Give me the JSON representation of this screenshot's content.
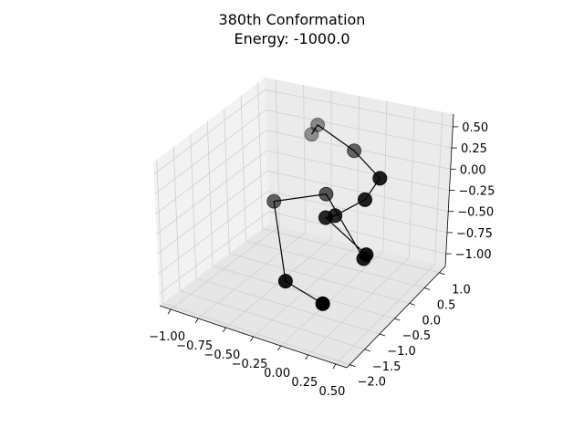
{
  "chart_data": {
    "type": "scatter",
    "projection": "3d",
    "title_lines": [
      "380th Conformation",
      "Energy: -1000.0"
    ],
    "x_ticks": [
      "−1.00",
      "−0.75",
      "−0.50",
      "−0.25",
      "0.00",
      "0.25",
      "0.50"
    ],
    "y_ticks": [
      "−2.0",
      "−1.5",
      "−1.0",
      "−0.5",
      "0.0",
      "0.5",
      "1.0"
    ],
    "z_ticks": [
      "−1.00",
      "−0.75",
      "−0.50",
      "−0.25",
      "0.00",
      "0.25",
      "0.50"
    ],
    "xlim": [
      -1.1,
      0.6
    ],
    "ylim": [
      -2.1,
      1.2
    ],
    "zlim": [
      -1.15,
      0.65
    ],
    "grid": true,
    "marker_color": "#000000",
    "line_color": "#000000",
    "pane_color": "#f2f2f2",
    "points": [
      {
        "x": -0.62,
        "y": 1.0,
        "z": 0.15
      },
      {
        "x": -0.55,
        "y": 0.95,
        "z": 0.3
      },
      {
        "x": -0.1,
        "y": 0.55,
        "z": 0.25
      },
      {
        "x": 0.4,
        "y": -0.4,
        "z": 0.4
      },
      {
        "x": 0.3,
        "y": -0.5,
        "z": 0.15
      },
      {
        "x": 0.02,
        "y": -0.45,
        "z": -0.15
      },
      {
        "x": -0.05,
        "y": -0.5,
        "z": -0.18
      },
      {
        "x": 0.35,
        "y": -0.6,
        "z": -0.45
      },
      {
        "x": 0.3,
        "y": -0.5,
        "z": -0.55
      },
      {
        "x": -0.25,
        "y": 0.2,
        "z": -0.2
      },
      {
        "x": -0.7,
        "y": 0.1,
        "z": -0.4
      },
      {
        "x": -0.3,
        "y": -0.9,
        "z": -0.9
      },
      {
        "x": 0.1,
        "y": -1.1,
        "z": -0.95
      }
    ]
  }
}
